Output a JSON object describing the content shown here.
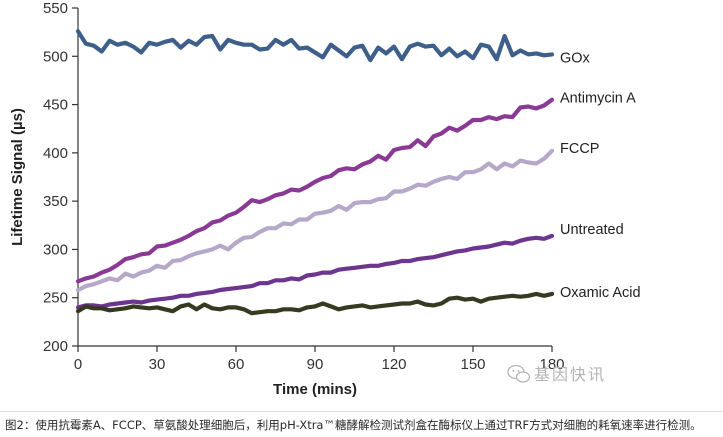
{
  "chart_data": {
    "type": "line",
    "title": "",
    "xlabel": "Time (mins)",
    "ylabel": "Lifetime Signal (µs)",
    "xlim": [
      0,
      180
    ],
    "ylim": [
      200,
      550
    ],
    "x_ticks": [
      "0",
      "30",
      "60",
      "90",
      "120",
      "150",
      "180"
    ],
    "y_ticks": [
      "550",
      "500",
      "450",
      "400",
      "350",
      "300",
      "250",
      "200"
    ],
    "grid": false,
    "legend": "inline labels at right end of each line",
    "series": [
      {
        "name": "GOx",
        "color": "#3d5f8a",
        "x": [
          0,
          3,
          6,
          9,
          12,
          15,
          18,
          21,
          24,
          27,
          30,
          33,
          36,
          39,
          42,
          45,
          48,
          51,
          54,
          57,
          60,
          63,
          66,
          69,
          72,
          75,
          78,
          81,
          84,
          87,
          90,
          93,
          96,
          99,
          102,
          105,
          108,
          111,
          114,
          117,
          120,
          123,
          126,
          129,
          132,
          135,
          138,
          141,
          144,
          147,
          150,
          153,
          156,
          159,
          162,
          165,
          168,
          171,
          174,
          177,
          180
        ],
        "values": [
          526,
          513,
          511,
          505,
          516,
          512,
          514,
          510,
          504,
          514,
          512,
          515,
          517,
          509,
          516,
          512,
          520,
          521,
          507,
          517,
          514,
          512,
          512,
          507,
          508,
          517,
          512,
          517,
          508,
          509,
          504,
          499,
          512,
          506,
          500,
          509,
          511,
          496,
          509,
          503,
          510,
          497,
          510,
          513,
          510,
          511,
          501,
          508,
          500,
          505,
          498,
          512,
          510,
          497,
          521,
          501,
          506,
          502,
          503,
          501,
          502
        ]
      },
      {
        "name": "Antimycin A",
        "color": "#8a3a94",
        "x": [
          0,
          3,
          6,
          9,
          12,
          15,
          18,
          21,
          24,
          27,
          30,
          33,
          36,
          39,
          42,
          45,
          48,
          51,
          54,
          57,
          60,
          63,
          66,
          69,
          72,
          75,
          78,
          81,
          84,
          87,
          90,
          93,
          96,
          99,
          102,
          105,
          108,
          111,
          114,
          117,
          120,
          123,
          126,
          129,
          132,
          135,
          138,
          141,
          144,
          147,
          150,
          153,
          156,
          159,
          162,
          165,
          168,
          171,
          174,
          177,
          180
        ],
        "values": [
          267,
          270,
          272,
          276,
          279,
          284,
          290,
          292,
          295,
          296,
          303,
          304,
          307,
          310,
          314,
          319,
          322,
          328,
          330,
          335,
          338,
          344,
          351,
          349,
          352,
          356,
          358,
          362,
          361,
          365,
          370,
          374,
          376,
          382,
          384,
          383,
          388,
          391,
          397,
          393,
          403,
          405,
          406,
          413,
          407,
          417,
          420,
          426,
          423,
          428,
          434,
          434,
          437,
          435,
          438,
          437,
          447,
          448,
          446,
          449,
          455
        ]
      },
      {
        "name": "FCCP",
        "color": "#b6a8c9",
        "x": [
          0,
          3,
          6,
          9,
          12,
          15,
          18,
          21,
          24,
          27,
          30,
          33,
          36,
          39,
          42,
          45,
          48,
          51,
          54,
          57,
          60,
          63,
          66,
          69,
          72,
          75,
          78,
          81,
          84,
          87,
          90,
          93,
          96,
          99,
          102,
          105,
          108,
          111,
          114,
          117,
          120,
          123,
          126,
          129,
          132,
          135,
          138,
          141,
          144,
          147,
          150,
          153,
          156,
          159,
          162,
          165,
          168,
          171,
          174,
          177,
          180
        ],
        "values": [
          258,
          262,
          264,
          267,
          270,
          268,
          275,
          272,
          276,
          278,
          283,
          281,
          288,
          289,
          293,
          296,
          298,
          300,
          304,
          300,
          307,
          312,
          313,
          318,
          322,
          322,
          327,
          326,
          331,
          331,
          337,
          338,
          340,
          345,
          341,
          348,
          349,
          349,
          352,
          353,
          360,
          360,
          363,
          367,
          366,
          370,
          373,
          375,
          373,
          380,
          380,
          383,
          389,
          383,
          389,
          386,
          392,
          390,
          389,
          394,
          402
        ]
      },
      {
        "name": "Untreated",
        "color": "#6b3590",
        "x": [
          0,
          3,
          6,
          9,
          12,
          15,
          18,
          21,
          24,
          27,
          30,
          33,
          36,
          39,
          42,
          45,
          48,
          51,
          54,
          57,
          60,
          63,
          66,
          69,
          72,
          75,
          78,
          81,
          84,
          87,
          90,
          93,
          96,
          99,
          102,
          105,
          108,
          111,
          114,
          117,
          120,
          123,
          126,
          129,
          132,
          135,
          138,
          141,
          144,
          147,
          150,
          153,
          156,
          159,
          162,
          165,
          168,
          171,
          174,
          177,
          180
        ],
        "values": [
          240,
          242,
          242,
          241,
          243,
          244,
          245,
          246,
          245,
          247,
          248,
          249,
          250,
          252,
          252,
          254,
          255,
          256,
          258,
          259,
          260,
          261,
          262,
          265,
          265,
          268,
          268,
          270,
          269,
          273,
          274,
          276,
          276,
          279,
          280,
          281,
          282,
          283,
          283,
          285,
          286,
          288,
          288,
          290,
          291,
          292,
          294,
          296,
          298,
          299,
          301,
          302,
          303,
          305,
          307,
          306,
          309,
          311,
          312,
          311,
          314
        ]
      },
      {
        "name": "Oxamic Acid",
        "color": "#353a20",
        "x": [
          0,
          3,
          6,
          9,
          12,
          15,
          18,
          21,
          24,
          27,
          30,
          33,
          36,
          39,
          42,
          45,
          48,
          51,
          54,
          57,
          60,
          63,
          66,
          69,
          72,
          75,
          78,
          81,
          84,
          87,
          90,
          93,
          96,
          99,
          102,
          105,
          108,
          111,
          114,
          117,
          120,
          123,
          126,
          129,
          132,
          135,
          138,
          141,
          144,
          147,
          150,
          153,
          156,
          159,
          162,
          165,
          168,
          171,
          174,
          177,
          180
        ],
        "values": [
          236,
          241,
          239,
          239,
          237,
          238,
          239,
          241,
          240,
          239,
          240,
          238,
          236,
          241,
          243,
          238,
          243,
          239,
          238,
          240,
          240,
          238,
          234,
          235,
          236,
          236,
          238,
          238,
          237,
          240,
          241,
          244,
          241,
          238,
          240,
          241,
          242,
          240,
          241,
          242,
          243,
          244,
          244,
          246,
          243,
          242,
          244,
          249,
          250,
          248,
          249,
          246,
          249,
          250,
          251,
          252,
          251,
          252,
          254,
          252,
          254
        ]
      }
    ]
  },
  "watermark": {
    "text": "基因快讯",
    "icon": "wechat-icon"
  },
  "caption": "图2：使用抗霉素A、FCCP、草氨酸处理细胞后，利用pH-Xtra™糖酵解检测试剂盒在酶标仪上通过TRF方式对细胞的耗氧速率进行检测。"
}
